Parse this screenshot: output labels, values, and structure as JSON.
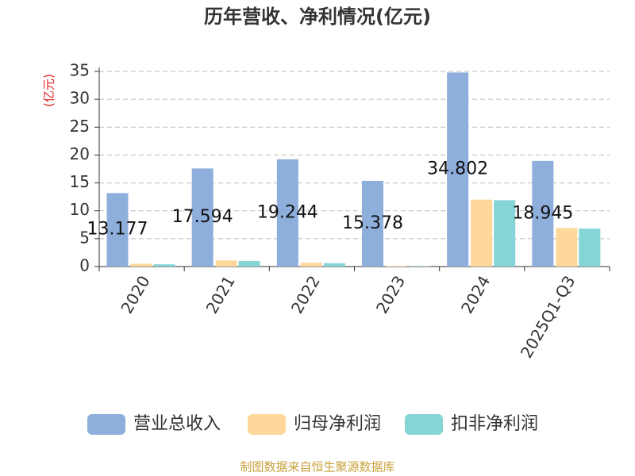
{
  "chart_data": {
    "type": "bar",
    "title": "历年营收、净利情况(亿元)",
    "y_label": "(亿元)",
    "categories": [
      "2020",
      "2021",
      "2022",
      "2023",
      "2024",
      "2025Q1-Q3"
    ],
    "series": [
      {
        "name": "营业总收入",
        "color": "#8eaedb",
        "values": [
          13.177,
          17.594,
          19.244,
          15.378,
          34.802,
          18.945
        ],
        "show_labels": true
      },
      {
        "name": "归母净利润",
        "color": "#fdd89a",
        "values": [
          0.5,
          1.1,
          0.7,
          0.1,
          12.0,
          6.9
        ]
      },
      {
        "name": "扣非净利润",
        "color": "#85d4d6",
        "values": [
          0.4,
          1.0,
          0.6,
          0.05,
          11.9,
          6.8
        ]
      }
    ],
    "ylim": [
      0,
      35
    ],
    "yticks": [
      0,
      5,
      10,
      15,
      20,
      25,
      30,
      35
    ],
    "grid": true,
    "legend": "bottom",
    "source": "制图数据来自恒生聚源数据库"
  }
}
